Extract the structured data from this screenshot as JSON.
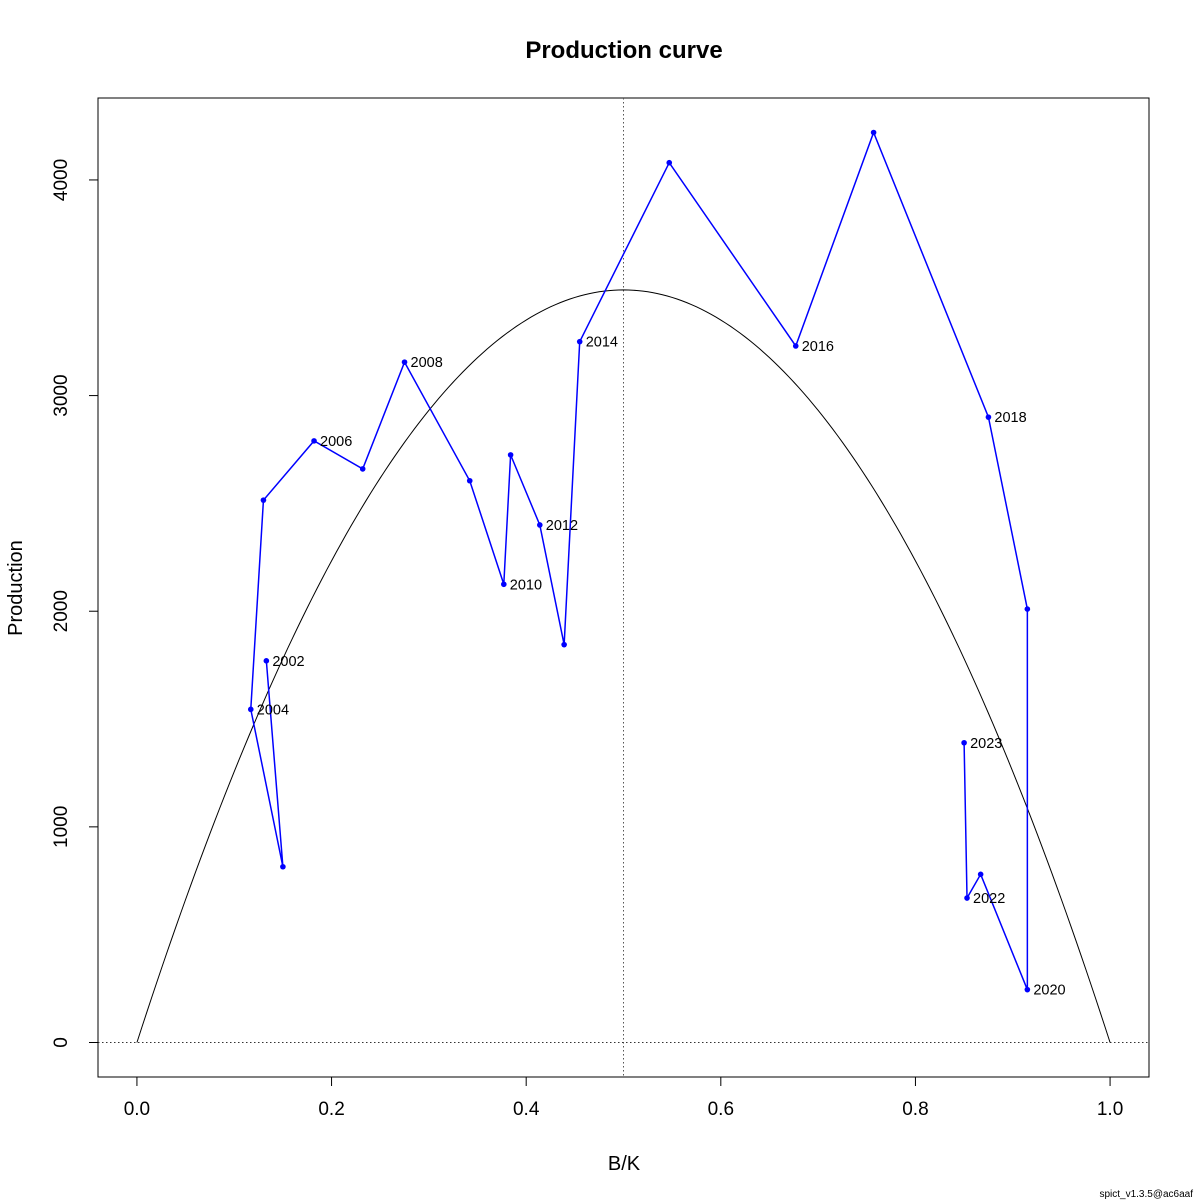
{
  "chart_data": {
    "type": "line",
    "title": "Production curve",
    "xlabel": "B/K",
    "ylabel": "Production",
    "xlim": [
      -0.04,
      1.04
    ],
    "ylim": [
      -160,
      4380
    ],
    "x_ticks": [
      0,
      0.2,
      0.4,
      0.6,
      0.8,
      1.0
    ],
    "x_tick_labels": [
      "0.0",
      "0.2",
      "0.4",
      "0.6",
      "0.8",
      "1.0"
    ],
    "y_ticks": [
      0,
      1000,
      2000,
      3000,
      4000
    ],
    "y_tick_labels": [
      "0",
      "1000",
      "2000",
      "3000",
      "4000"
    ],
    "grid": false,
    "reference_lines": {
      "vertical_x": 0.5,
      "horizontal_y": 0
    },
    "curve": {
      "description_free": true,
      "peak_x": 0.5,
      "peak_y": 3490,
      "zero_x": [
        0,
        1
      ]
    },
    "series": [
      {
        "color": "#0000ff",
        "points": [
          {
            "x": 0.133,
            "y": 1770,
            "label": "2002"
          },
          {
            "x": 0.15,
            "y": 815,
            "label": ""
          },
          {
            "x": 0.117,
            "y": 1545,
            "label": "2004"
          },
          {
            "x": 0.13,
            "y": 2515,
            "label": ""
          },
          {
            "x": 0.182,
            "y": 2790,
            "label": "2006"
          },
          {
            "x": 0.232,
            "y": 2660,
            "label": ""
          },
          {
            "x": 0.275,
            "y": 3155,
            "label": "2008"
          },
          {
            "x": 0.342,
            "y": 2605,
            "label": ""
          },
          {
            "x": 0.377,
            "y": 2125,
            "label": "2010"
          },
          {
            "x": 0.384,
            "y": 2725,
            "label": ""
          },
          {
            "x": 0.414,
            "y": 2400,
            "label": "2012"
          },
          {
            "x": 0.439,
            "y": 1845,
            "label": ""
          },
          {
            "x": 0.455,
            "y": 3250,
            "label": "2014"
          },
          {
            "x": 0.547,
            "y": 4080,
            "label": ""
          },
          {
            "x": 0.677,
            "y": 3230,
            "label": "2016"
          },
          {
            "x": 0.757,
            "y": 4220,
            "label": ""
          },
          {
            "x": 0.875,
            "y": 2900,
            "label": "2018"
          },
          {
            "x": 0.915,
            "y": 2010,
            "label": ""
          },
          {
            "x": 0.915,
            "y": 245,
            "label": "2020"
          },
          {
            "x": 0.867,
            "y": 780,
            "label": ""
          },
          {
            "x": 0.853,
            "y": 670,
            "label": "2022"
          },
          {
            "x": 0.85,
            "y": 1390,
            "label": "2023"
          }
        ]
      }
    ],
    "credit": "spict_v1.3.5@ac6aaf"
  }
}
